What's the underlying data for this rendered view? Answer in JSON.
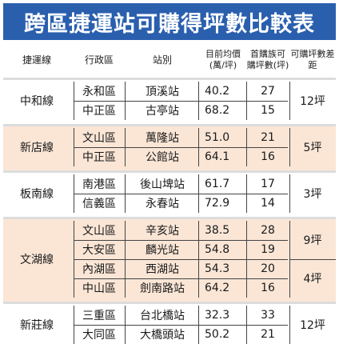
{
  "title": "跨區捷運站可購得坪數比較表",
  "header": {
    "line": "捷運線",
    "district": "行政區",
    "station": "站別",
    "price": "目前均價(萬/坪)",
    "tsubo": "首購族可購坪數(坪)",
    "gap": "可購坪數差距"
  },
  "groups": [
    {
      "line": "中和線",
      "shaded": false,
      "rows": [
        {
          "district": "永和區",
          "station": "頂溪站",
          "price": "40.2",
          "tsubo": "27"
        },
        {
          "district": "中正區",
          "station": "古亭站",
          "price": "68.2",
          "tsubo": "15"
        }
      ],
      "gaps": [
        {
          "value": "12坪",
          "span": 2
        }
      ]
    },
    {
      "line": "新店線",
      "shaded": true,
      "rows": [
        {
          "district": "文山區",
          "station": "萬隆站",
          "price": "51.0",
          "tsubo": "21"
        },
        {
          "district": "中正區",
          "station": "公館站",
          "price": "64.1",
          "tsubo": "16"
        }
      ],
      "gaps": [
        {
          "value": "5坪",
          "span": 2
        }
      ]
    },
    {
      "line": "板南線",
      "shaded": false,
      "rows": [
        {
          "district": "南港區",
          "station": "後山埤站",
          "price": "61.7",
          "tsubo": "17"
        },
        {
          "district": "信義區",
          "station": "永春站",
          "price": "72.9",
          "tsubo": "14"
        }
      ],
      "gaps": [
        {
          "value": "3坪",
          "span": 2
        }
      ]
    },
    {
      "line": "文湖線",
      "shaded": true,
      "rows": [
        {
          "district": "文山區",
          "station": "辛亥站",
          "price": "38.5",
          "tsubo": "28"
        },
        {
          "district": "大安區",
          "station": "麟光站",
          "price": "54.8",
          "tsubo": "19"
        },
        {
          "district": "內湖區",
          "station": "西湖站",
          "price": "54.3",
          "tsubo": "20"
        },
        {
          "district": "中山區",
          "station": "劍南路站",
          "price": "64.2",
          "tsubo": "16"
        }
      ],
      "gaps": [
        {
          "value": "9坪",
          "span": 2
        },
        {
          "value": "4坪",
          "span": 2
        }
      ]
    },
    {
      "line": "新莊線",
      "shaded": false,
      "rows": [
        {
          "district": "三重區",
          "station": "台北橋站",
          "price": "32.3",
          "tsubo": "33"
        },
        {
          "district": "大同區",
          "station": "大橋頭站",
          "price": "50.2",
          "tsubo": "21"
        }
      ],
      "gaps": [
        {
          "value": "12坪",
          "span": 2
        }
      ]
    }
  ]
}
